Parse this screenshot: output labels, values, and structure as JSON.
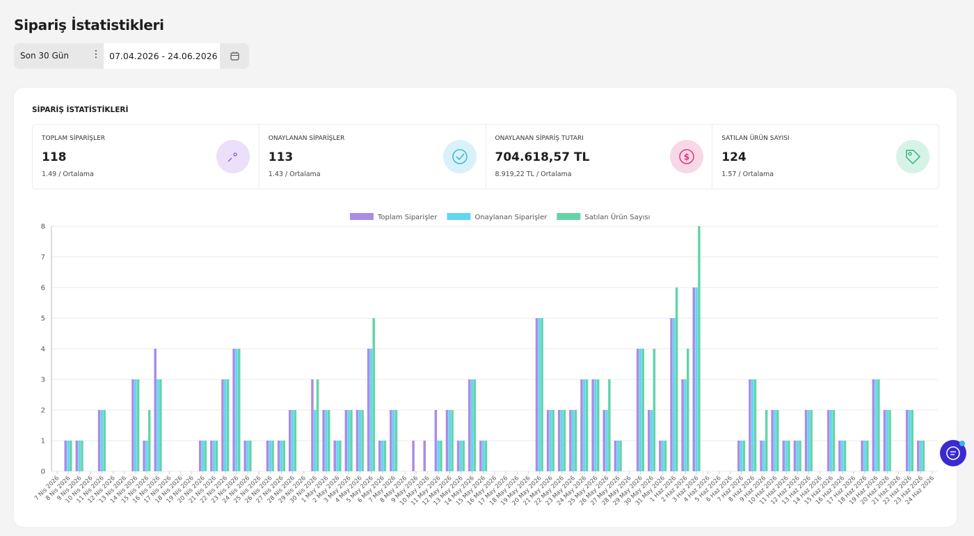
{
  "header": {
    "title": "Sipariş İstatistikleri",
    "range_preset": "Son 30 Gün",
    "date_range": "07.04.2026 - 24.06.2026"
  },
  "card_title": "SİPARİŞ İSTATİSTİKLERİ",
  "stats": [
    {
      "label": "TOPLAM SİPARİŞLER",
      "value": "118",
      "average": "1.49 / Ortalama"
    },
    {
      "label": "ONAYLANAN SİPARİŞLER",
      "value": "113",
      "average": "1.43 / Ortalama"
    },
    {
      "label": "ONAYLANAN SİPARİŞ TUTARI",
      "value": "704.618,57 TL",
      "average": "8.919,22 TL / Ortalama"
    },
    {
      "label": "SATILAN ÜRÜN SAYISI",
      "value": "124",
      "average": "1.57 / Ortalama"
    }
  ],
  "chart_data": {
    "type": "bar",
    "legend": "top",
    "grid": true,
    "categories": [
      "7 Nis 2026",
      "8 Nis 2026",
      "9 Nis 2026",
      "10 Nis 2026",
      "11 Nis 2026",
      "12 Nis 2026",
      "13 Nis 2026",
      "14 Nis 2026",
      "15 Nis 2026",
      "16 Nis 2026",
      "17 Nis 2026",
      "18 Nis 2026",
      "19 Nis 2026",
      "20 Nis 2026",
      "21 Nis 2026",
      "22 Nis 2026",
      "23 Nis 2026",
      "24 Nis 2026",
      "25 Nis 2026",
      "26 Nis 2026",
      "27 Nis 2026",
      "28 Nis 2026",
      "29 Nis 2026",
      "30 Nis 2026",
      "1 May 2026",
      "2 May 2026",
      "3 May 2026",
      "4 May 2026",
      "5 May 2026",
      "6 May 2026",
      "7 May 2026",
      "8 May 2026",
      "9 May 2026",
      "10 May 2026",
      "11 May 2026",
      "12 May 2026",
      "13 May 2026",
      "14 May 2026",
      "15 May 2026",
      "16 May 2026",
      "17 May 2026",
      "18 May 2026",
      "19 May 2026",
      "20 May 2026",
      "21 May 2026",
      "22 May 2026",
      "23 May 2026",
      "24 May 2026",
      "25 May 2026",
      "26 May 2026",
      "27 May 2026",
      "28 May 2026",
      "29 May 2026",
      "30 May 2026",
      "31 May 2026",
      "1 Haz 2026",
      "2 Haz 2026",
      "3 Haz 2026",
      "4 Haz 2026",
      "5 Haz 2026",
      "6 Haz 2026",
      "7 Haz 2026",
      "8 Haz 2026",
      "9 Haz 2026",
      "10 Haz 2026",
      "11 Haz 2026",
      "12 Haz 2026",
      "13 Haz 2026",
      "14 Haz 2026",
      "15 Haz 2026",
      "16 Haz 2026",
      "17 Haz 2026",
      "18 Haz 2026",
      "19 Haz 2026",
      "20 Haz 2026",
      "21 Haz 2026",
      "22 Haz 2026",
      "23 Haz 2026",
      "24 Haz 2026"
    ],
    "series": [
      {
        "name": "Toplam Siparişler",
        "color": "#a98ce6",
        "values": [
          0,
          1,
          1,
          0,
          2,
          0,
          0,
          3,
          1,
          4,
          0,
          0,
          0,
          1,
          1,
          3,
          4,
          1,
          0,
          1,
          1,
          2,
          0,
          3,
          2,
          1,
          2,
          2,
          4,
          1,
          2,
          0,
          1,
          1,
          2,
          2,
          1,
          3,
          1,
          0,
          0,
          0,
          0,
          5,
          2,
          2,
          2,
          3,
          3,
          2,
          1,
          0,
          4,
          2,
          1,
          5,
          3,
          6,
          0,
          0,
          0,
          1,
          3,
          1,
          2,
          1,
          1,
          2,
          0,
          2,
          1,
          0,
          1,
          3,
          2,
          0,
          2,
          1,
          0
        ]
      },
      {
        "name": "Onaylanan Siparişler",
        "color": "#62d6f2",
        "values": [
          0,
          1,
          1,
          0,
          2,
          0,
          0,
          3,
          1,
          3,
          0,
          0,
          0,
          1,
          1,
          3,
          4,
          1,
          0,
          1,
          1,
          2,
          0,
          2,
          2,
          1,
          2,
          2,
          4,
          1,
          2,
          0,
          0,
          0,
          1,
          2,
          1,
          3,
          1,
          0,
          0,
          0,
          0,
          5,
          2,
          2,
          2,
          3,
          3,
          2,
          1,
          0,
          4,
          2,
          1,
          5,
          3,
          6,
          0,
          0,
          0,
          1,
          3,
          1,
          2,
          1,
          1,
          2,
          0,
          2,
          1,
          0,
          1,
          3,
          2,
          0,
          2,
          1,
          0
        ]
      },
      {
        "name": "Satılan Ürün Sayısı",
        "color": "#63d4a8",
        "values": [
          0,
          1,
          1,
          0,
          2,
          0,
          0,
          3,
          2,
          3,
          0,
          0,
          0,
          1,
          1,
          3,
          4,
          1,
          0,
          1,
          1,
          2,
          0,
          3,
          2,
          1,
          2,
          2,
          5,
          1,
          2,
          0,
          0,
          0,
          1,
          2,
          1,
          3,
          1,
          0,
          0,
          0,
          0,
          5,
          2,
          2,
          2,
          3,
          3,
          3,
          1,
          0,
          4,
          4,
          1,
          6,
          4,
          8,
          0,
          0,
          0,
          1,
          3,
          2,
          2,
          1,
          1,
          2,
          0,
          2,
          1,
          0,
          1,
          3,
          2,
          0,
          2,
          1,
          0
        ]
      }
    ],
    "ylim": [
      0,
      8
    ],
    "yticks": [
      0,
      1,
      2,
      3,
      4,
      5,
      6,
      7,
      8
    ]
  }
}
